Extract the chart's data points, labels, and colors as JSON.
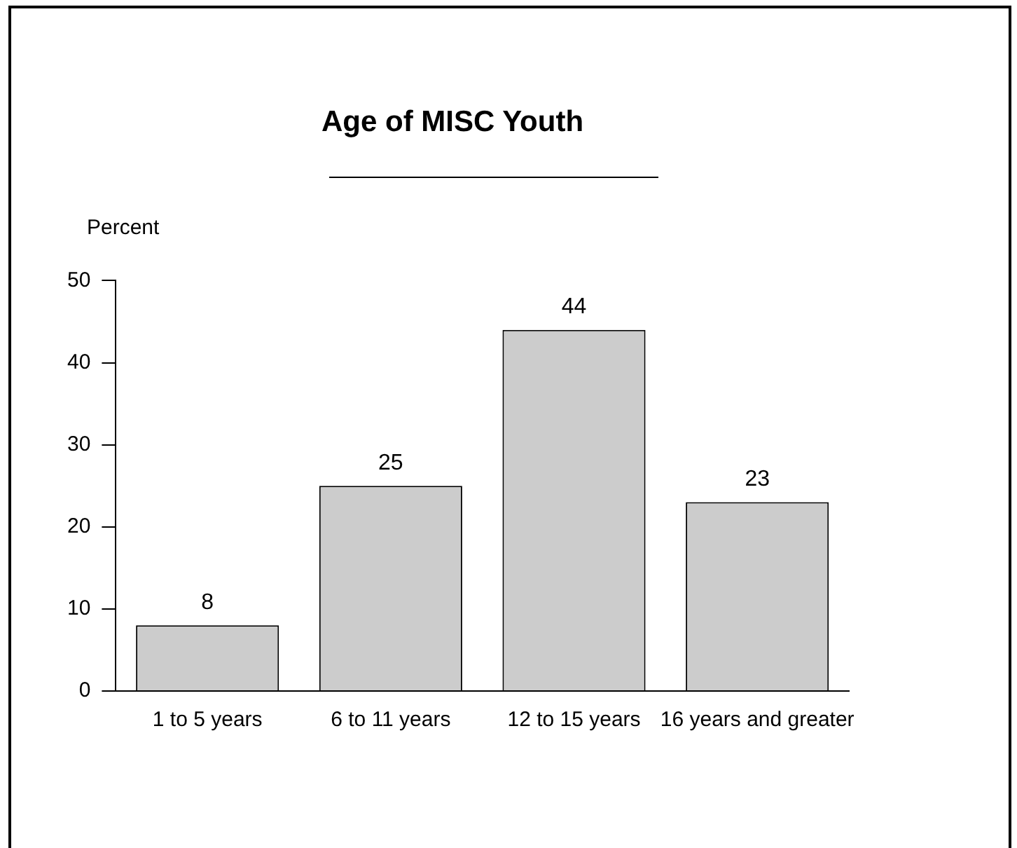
{
  "chart_data": {
    "type": "bar",
    "title": "Age of MISC Youth",
    "ylabel": "Percent",
    "categories": [
      "1 to 5 years",
      "6 to 11 years",
      "12 to 15 years",
      "16 years and greater"
    ],
    "values": [
      8,
      25,
      44,
      23
    ],
    "color": "#cccccc",
    "ylim": [
      0,
      50
    ],
    "yticks": [
      0,
      10,
      20,
      30,
      40,
      50
    ],
    "grid": false,
    "legend": false,
    "data_labels": true
  }
}
